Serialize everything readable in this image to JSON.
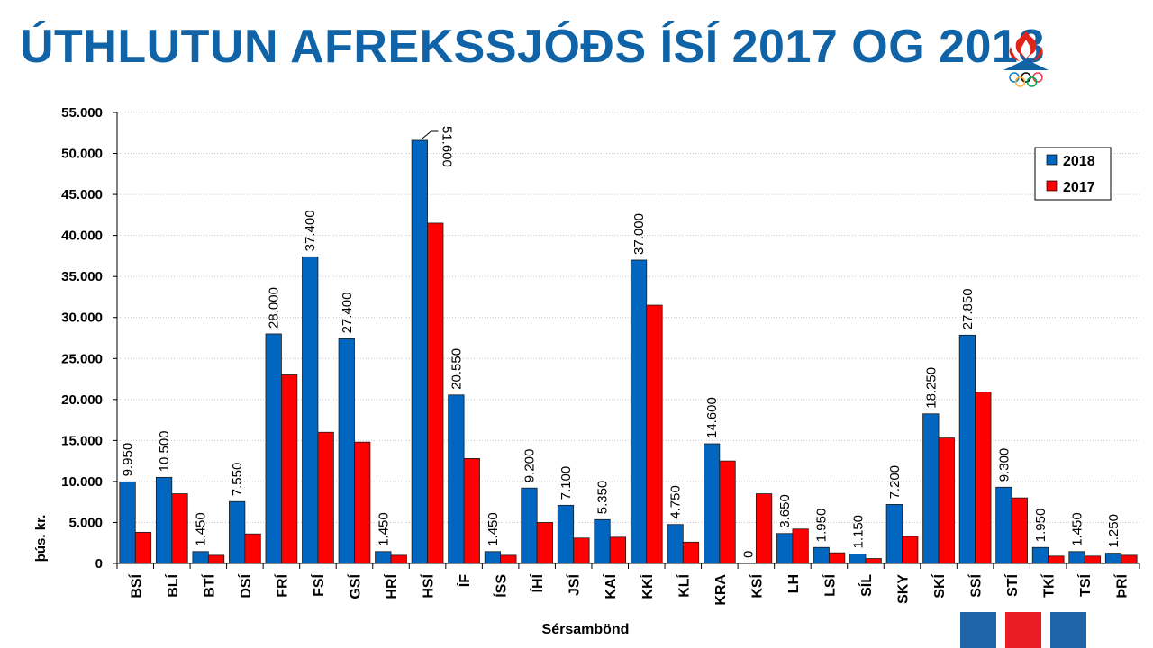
{
  "header": {
    "title": "ÚTHLUTUN AFREKSSJÓÐS ÍSÍ 2017 OG 2018"
  },
  "colors": {
    "title": "#0f63a6",
    "series_2018": "#0066bf",
    "series_2017": "#ff0000",
    "footer": [
      "#1e64a6",
      "#ec1c24",
      "#1e64a6"
    ]
  },
  "icons": {
    "logo": "isi-olympic-flame-logo"
  },
  "chart_data": {
    "type": "bar",
    "title": "",
    "xlabel": "Sérsambönd",
    "ylabel": "þús. kr.",
    "ylim": [
      0,
      55000
    ],
    "yticks": [
      "0",
      "5.000",
      "10.000",
      "15.000",
      "20.000",
      "25.000",
      "30.000",
      "35.000",
      "40.000",
      "45.000",
      "50.000",
      "55.000"
    ],
    "grid": true,
    "legend_position": "top-right",
    "categories": [
      "BSÍ",
      "BLÍ",
      "BTÍ",
      "DSÍ",
      "FRÍ",
      "FSÍ",
      "GSÍ",
      "HRÍ",
      "HSÍ",
      "ÍF",
      "ÍSS",
      "ÍHÍ",
      "JSÍ",
      "KAÍ",
      "KKÍ",
      "KLÍ",
      "KRA",
      "KSÍ",
      "LH",
      "LSÍ",
      "SÍL",
      "SKY",
      "SKÍ",
      "SSÍ",
      "STÍ",
      "TKÍ",
      "TSÍ",
      "ÞRÍ"
    ],
    "series": [
      {
        "name": "2018",
        "values": [
          9950,
          10500,
          1450,
          7550,
          28000,
          37400,
          27400,
          1450,
          51600,
          20550,
          1450,
          9200,
          7100,
          5350,
          37000,
          4750,
          14600,
          0,
          3650,
          1950,
          1150,
          7200,
          18250,
          27850,
          9300,
          1950,
          1450,
          1250
        ],
        "labels": [
          "9.950",
          "10.500",
          "1.450",
          "7.550",
          "28.000",
          "37.400",
          "27.400",
          "1.450",
          "51.600",
          "20.550",
          "1.450",
          "9.200",
          "7.100",
          "5.350",
          "37.000",
          "4.750",
          "14.600",
          "0",
          "3.650",
          "1.950",
          "1.150",
          "7.200",
          "18.250",
          "27.850",
          "9.300",
          "1.950",
          "1.450",
          "1.250"
        ]
      },
      {
        "name": "2017",
        "values": [
          3800,
          8500,
          1000,
          3600,
          23000,
          16000,
          14800,
          1000,
          41500,
          12800,
          1000,
          5000,
          3100,
          3200,
          31500,
          2600,
          12500,
          8500,
          4200,
          1300,
          600,
          3300,
          15300,
          20900,
          8000,
          900,
          900,
          1000
        ]
      }
    ]
  }
}
